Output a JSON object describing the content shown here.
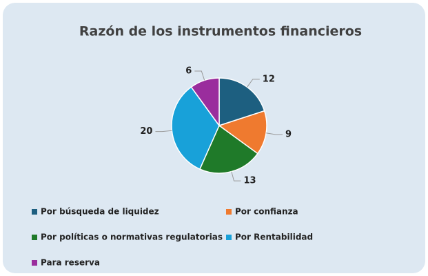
{
  "chart_data": {
    "type": "pie",
    "title": "Razón de los instrumentos financieros",
    "categories": [
      "Por búsqueda de liquidez",
      "Por confianza",
      "Por políticas o normativas regulatorias",
      "Por Rentabilidad",
      "Para reserva"
    ],
    "values": [
      12,
      9,
      13,
      20,
      6
    ],
    "colors": [
      "#1d5f80",
      "#ef7a2f",
      "#1f7a29",
      "#18a1d9",
      "#9a2d9d"
    ],
    "legend": "bottom"
  }
}
